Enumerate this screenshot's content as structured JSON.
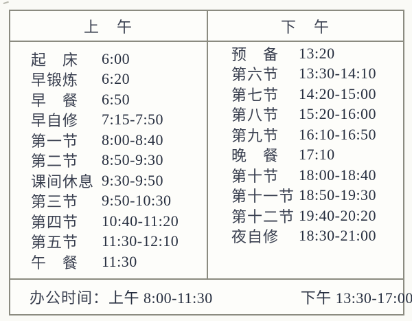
{
  "table": {
    "header": {
      "morning": "上　午",
      "afternoon": "下　午"
    },
    "morning_rows": [
      {
        "label": "起　床",
        "time": "6:00"
      },
      {
        "label": "早锻炼",
        "time": "6:20"
      },
      {
        "label": "早　餐",
        "time": "6:50"
      },
      {
        "label": "早自修",
        "time": "7:15-7:50"
      },
      {
        "label": "第一节",
        "time": "8:00-8:40"
      },
      {
        "label": "第二节",
        "time": "8:50-9:30"
      },
      {
        "label": "课间休息",
        "time": "9:30-9:50"
      },
      {
        "label": "第三节",
        "time": "9:50-10:30"
      },
      {
        "label": "第四节",
        "time": "10:40-11:20"
      },
      {
        "label": "第五节",
        "time": "11:30-12:10"
      },
      {
        "label": "午　餐",
        "time": "11:30"
      }
    ],
    "afternoon_rows": [
      {
        "label": "预　备",
        "time": "13:20"
      },
      {
        "label": "第六节",
        "time": "13:30-14:10"
      },
      {
        "label": "第七节",
        "time": "14:20-15:00"
      },
      {
        "label": "第八节",
        "time": "15:20-16:00"
      },
      {
        "label": "第九节",
        "time": "16:10-16:50"
      },
      {
        "label": "晚　餐",
        "time": "17:10"
      },
      {
        "label": "第十节",
        "time": "18:00-18:40"
      },
      {
        "label": "第十一节",
        "time": "18:50-19:30"
      },
      {
        "label": "第十二节",
        "time": "19:40-20:20"
      },
      {
        "label": "夜自修",
        "time": "18:30-21:00"
      }
    ],
    "footer": {
      "office_hours_label": "办公时间：",
      "morning_hours": "上午 8:00-11:30",
      "afternoon_hours": "下午 13:30-17:00"
    }
  },
  "colors": {
    "background": "#fafaf6",
    "table_background": "#fdfdfa",
    "border": "#8b8b80",
    "text_label": "#3a4050",
    "text_time": "#262e3f"
  }
}
